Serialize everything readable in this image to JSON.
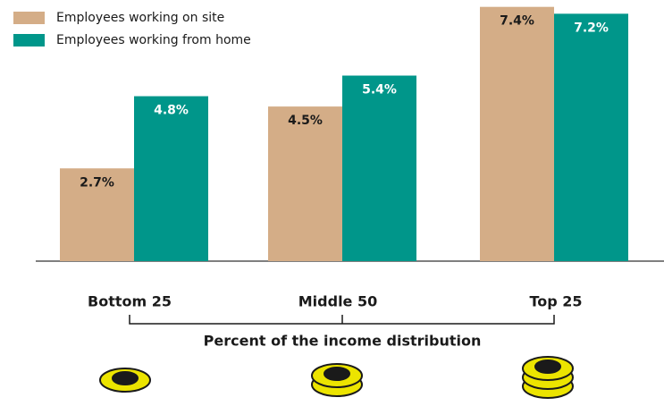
{
  "chart_data": {
    "type": "bar",
    "categories": [
      "Bottom 25",
      "Middle 50",
      "Top 25"
    ],
    "x_label": "Percent of the income distribution",
    "series": [
      {
        "name": "Employees working on site",
        "color": "#d4ad87",
        "values": [
          2.7,
          4.5,
          7.4
        ],
        "value_labels": [
          "2.7%",
          "4.5%",
          "7.4%"
        ],
        "label_color": "#1a1a1a"
      },
      {
        "name": "Employees working from home",
        "color": "#00968a",
        "values": [
          4.8,
          5.4,
          7.2
        ],
        "value_labels": [
          "4.8%",
          "5.4%",
          "7.2%"
        ],
        "label_color": "#ffffff"
      }
    ],
    "ylim": [
      0,
      7.6
    ],
    "grid": false
  }
}
